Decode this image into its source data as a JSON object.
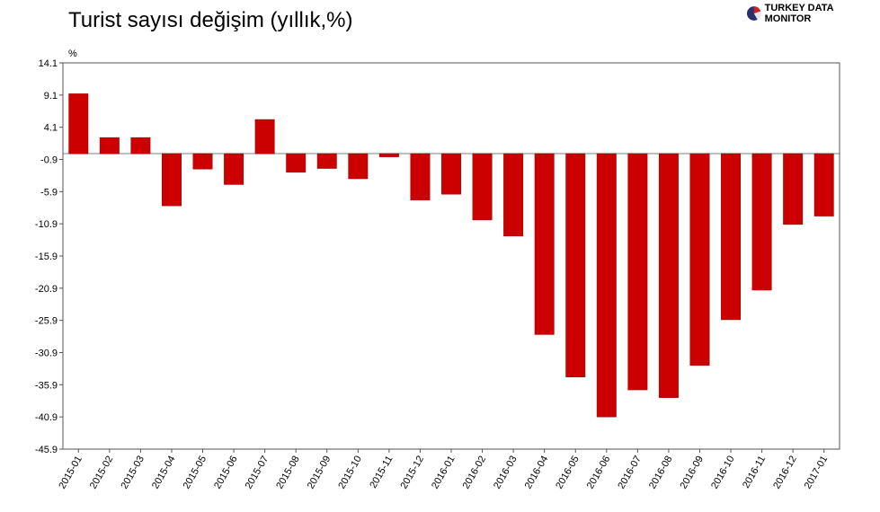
{
  "title": "Turist sayısı değişim (yıllık,%)",
  "logo_text": "TURKEY DATA MONITOR",
  "colors": {
    "bar": "#cc0000",
    "bar_edge": "#990000",
    "axis": "#555555",
    "zero_line": "#aaaaaa"
  },
  "chart_data": {
    "type": "bar",
    "title": "Turist sayısı değişim (yıllık,%)",
    "ylabel": "%",
    "ylim": [
      -45.9,
      14.1
    ],
    "yticks": [
      "14.1",
      "9.1",
      "4.1",
      "-0.9",
      "-5.9",
      "-10.9",
      "-15.9",
      "-20.9",
      "-25.9",
      "-30.9",
      "-35.9",
      "-40.9",
      "-45.9"
    ],
    "categories": [
      "2015-01",
      "2015-02",
      "2015-03",
      "2015-04",
      "2015-05",
      "2015-06",
      "2015-07",
      "2015-08",
      "2015-09",
      "2015-10",
      "2015-11",
      "2015-12",
      "2016-01",
      "2016-02",
      "2016-03",
      "2016-04",
      "2016-05",
      "2016-06",
      "2016-07",
      "2016-08",
      "2016-09",
      "2016-10",
      "2016-11",
      "2016-12",
      "2017-01"
    ],
    "values": [
      9.3,
      2.5,
      2.5,
      -8.1,
      -2.4,
      -4.8,
      5.3,
      -2.9,
      -2.3,
      -3.9,
      -0.5,
      -7.2,
      -6.3,
      -10.3,
      -12.8,
      -28.1,
      -34.7,
      -40.9,
      -36.7,
      -37.9,
      -32.9,
      -25.8,
      -21.2,
      -11.0,
      -9.7
    ],
    "grid": false,
    "legend": "none"
  }
}
